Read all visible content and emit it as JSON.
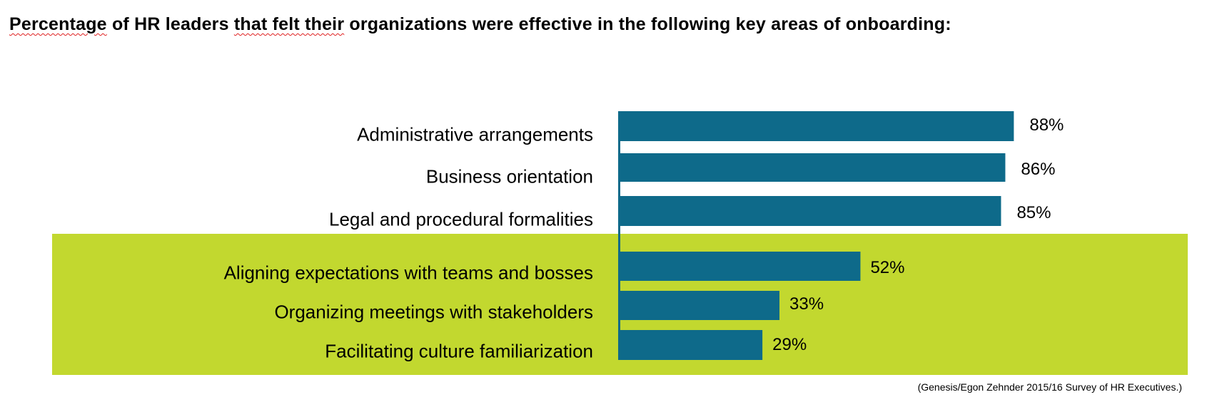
{
  "chart_data": {
    "type": "bar",
    "orientation": "horizontal",
    "title": "Percentage of HR leaders that felt their organizations were effective in the following key areas of onboarding:",
    "title_parts": [
      "Percentage",
      " of HR leaders ",
      "that felt their",
      " organizations were effective in the following key areas of onboarding:"
    ],
    "categories": [
      "Administrative arrangements",
      "Business orientation",
      "Legal and procedural formalities",
      "Aligning expectations with teams and bosses",
      "Organizing meetings with stakeholders",
      "Facilitating culture familiarization"
    ],
    "values": [
      88,
      86,
      85,
      52,
      33,
      29
    ],
    "value_labels": [
      "88%",
      "86%",
      "85%",
      "52%",
      "33%",
      "29%"
    ],
    "highlighted": [
      false,
      false,
      false,
      true,
      true,
      true
    ],
    "xlabel": "",
    "ylabel": "",
    "xlim": [
      0,
      100
    ],
    "grid": false,
    "source": "(Genesis/Egon Zehnder 2015/16 Survey of HR Executives.)",
    "colors": {
      "bar": "#0e6a8a",
      "highlight": "#c2d82f"
    }
  }
}
